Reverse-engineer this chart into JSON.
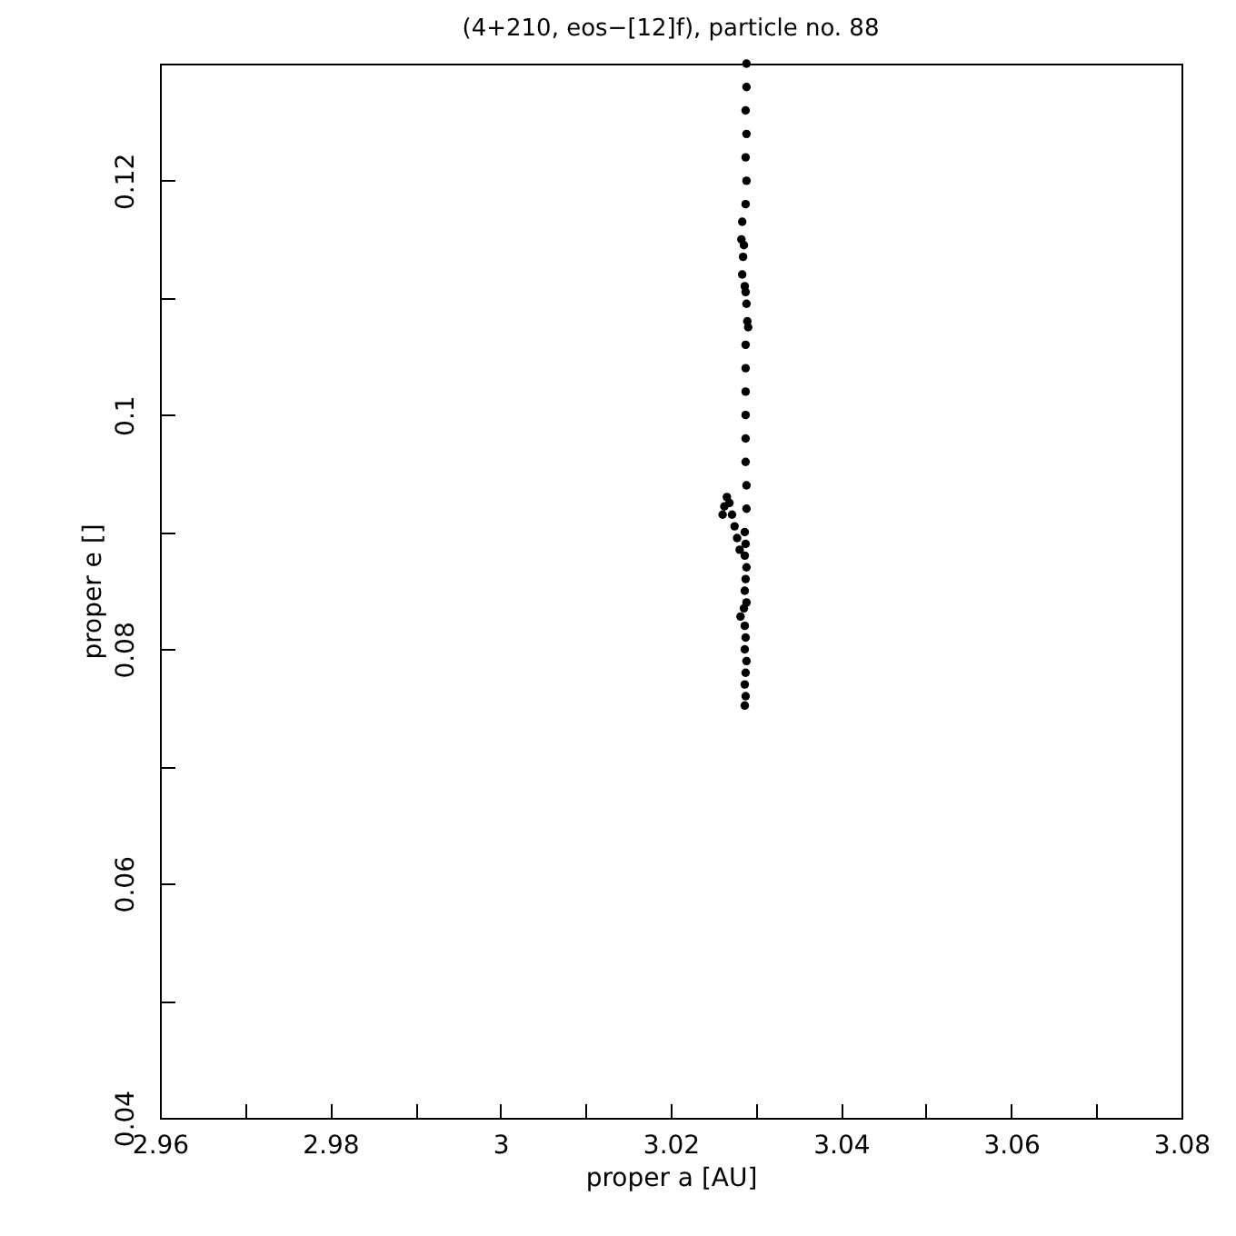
{
  "chart_data": {
    "type": "scatter",
    "title": "(4+210, eos−[12]f), particle no. 88",
    "xlabel": "proper a [AU]",
    "ylabel": "proper e []",
    "xlim": [
      2.96,
      3.08
    ],
    "ylim": [
      0.04,
      0.13
    ],
    "xticks": [
      2.96,
      {
        "value": 2.97,
        "label": null
      },
      2.98,
      {
        "value": 2.99,
        "label": null
      },
      3,
      {
        "value": 3.01,
        "label": null
      },
      3.02,
      {
        "value": 3.03,
        "label": null
      },
      3.04,
      {
        "value": 3.05,
        "label": null
      },
      3.06,
      {
        "value": 3.07,
        "label": null
      },
      3.08
    ],
    "yticks": [
      0.04,
      {
        "value": 0.05,
        "label": null
      },
      0.06,
      {
        "value": 0.07,
        "label": null
      },
      0.08,
      {
        "value": 0.09,
        "label": null
      },
      0.1,
      {
        "value": 0.11,
        "label": null
      },
      0.12
    ],
    "grid": false,
    "marker": "circle",
    "series": [
      {
        "color": "#000000",
        "x": [
          3.0289,
          3.0289,
          3.0288,
          3.0289,
          3.0288,
          3.0289,
          3.0288,
          3.0284,
          3.0283,
          3.0285,
          3.0284,
          3.0287,
          3.0289,
          3.029,
          3.0291,
          3.0288,
          3.0286,
          3.0288,
          3.0288,
          3.0288,
          3.0288,
          3.0288,
          3.0288,
          3.0289,
          3.0289,
          3.0261,
          3.0263,
          3.0266,
          3.0269,
          3.0272,
          3.0275,
          3.0278,
          3.0281,
          3.0287,
          3.0288,
          3.0287,
          3.0289,
          3.0288,
          3.0287,
          3.0289,
          3.0286,
          3.0282,
          3.0287,
          3.0288,
          3.0287,
          3.0289,
          3.0288,
          3.0287,
          3.0288,
          3.0287
        ],
        "values": [
          0.13,
          0.128,
          0.126,
          0.124,
          0.122,
          0.12,
          0.118,
          0.1165,
          0.115,
          0.1135,
          0.112,
          0.111,
          0.1095,
          0.108,
          0.1075,
          0.1105,
          0.1145,
          0.106,
          0.104,
          0.102,
          0.1,
          0.098,
          0.096,
          0.094,
          0.092,
          0.0915,
          0.0922,
          0.093,
          0.0925,
          0.0915,
          0.0905,
          0.0895,
          0.0885,
          0.09,
          0.089,
          0.088,
          0.087,
          0.086,
          0.085,
          0.084,
          0.0835,
          0.0828,
          0.082,
          0.081,
          0.08,
          0.079,
          0.078,
          0.077,
          0.076,
          0.0752
        ]
      }
    ]
  }
}
